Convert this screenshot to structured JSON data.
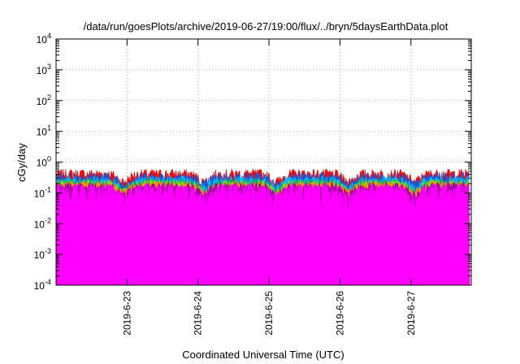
{
  "chart_data": {
    "type": "area",
    "title": "/data/run/goesPlots/archive/2019-06-27/19:00/flux/../bryn/5daysEarthData.plot",
    "xlabel": "Coordinated Universal Time (UTC)",
    "ylabel": "cGy/day",
    "yscale": "log",
    "ylim": [
      0.0001,
      10000
    ],
    "y_ticks": [
      {
        "mantissa": "10",
        "exp": "-4",
        "value": 0.0001
      },
      {
        "mantissa": "10",
        "exp": "-3",
        "value": 0.001
      },
      {
        "mantissa": "10",
        "exp": "-2",
        "value": 0.01
      },
      {
        "mantissa": "10",
        "exp": "-1",
        "value": 0.1
      },
      {
        "mantissa": "10",
        "exp": "0",
        "value": 1
      },
      {
        "mantissa": "10",
        "exp": "1",
        "value": 10
      },
      {
        "mantissa": "10",
        "exp": "2",
        "value": 100
      },
      {
        "mantissa": "10",
        "exp": "3",
        "value": 1000
      },
      {
        "mantissa": "10",
        "exp": "4",
        "value": 10000
      }
    ],
    "xlim": [
      22.0,
      27.85
    ],
    "x_ticks": [
      {
        "label": "2019-6-23",
        "day": 23
      },
      {
        "label": "2019-6-24",
        "day": 24
      },
      {
        "label": "2019-6-25",
        "day": 25
      },
      {
        "label": "2019-6-26",
        "day": 26
      },
      {
        "label": "2019-6-27",
        "day": 27
      }
    ],
    "grid": true,
    "series": [
      {
        "color": "#ff0000",
        "base": 0.42,
        "amp": 0.18
      },
      {
        "color": "#2255cc",
        "base": 0.34,
        "amp": 0.14
      },
      {
        "color": "#00bbff",
        "base": 0.26,
        "amp": 0.1
      },
      {
        "color": "#00aa66",
        "base": 0.22,
        "amp": 0.08
      },
      {
        "color": "#88dd00",
        "base": 0.2,
        "amp": 0.07
      },
      {
        "color": "#ff8800",
        "base": 0.18,
        "amp": 0.06
      },
      {
        "color": "#aa00aa",
        "base": 0.17,
        "amp": 0.05
      },
      {
        "color": "#ff00ff",
        "base": 0.15,
        "amp": 0.05
      }
    ],
    "dips": [
      22.95,
      24.08,
      25.1,
      26.12,
      27.05
    ],
    "final_drop": {
      "day": 27.82,
      "value": 0.0001
    }
  }
}
